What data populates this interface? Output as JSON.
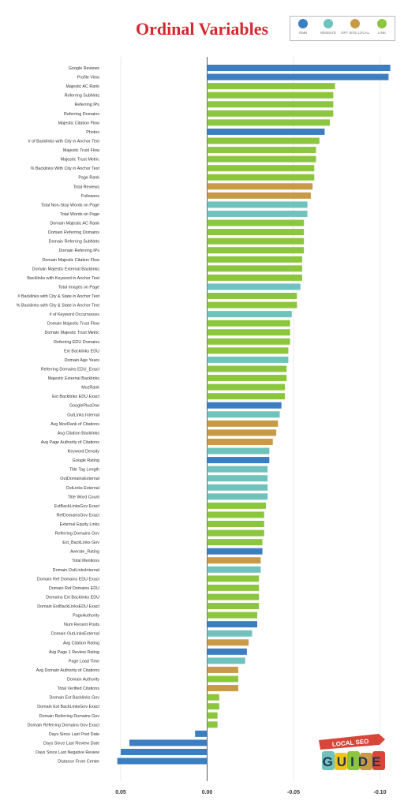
{
  "colors": {
    "title": "#d8282f",
    "gmb": "#3b7ec2",
    "website": "#6fc3bc",
    "offsite": "#c99a45",
    "link": "#8cc63e",
    "axis": "#333333",
    "grid": "#e6e6e6"
  },
  "logo": {
    "top": "LOCAL SEO",
    "bottom": "GUIDE"
  },
  "chart_data": {
    "type": "bar",
    "orientation": "horizontal",
    "title": "Ordinal Variables",
    "xlabel": "",
    "ylabel": "",
    "x_reversed": true,
    "xlim": [
      0.052,
      -0.108
    ],
    "x_ticks": [
      0.05,
      0.0,
      -0.05,
      -0.1
    ],
    "x_tick_labels": [
      "0.05",
      "0.00",
      "-0.05",
      "-0.10"
    ],
    "grid": "vertical",
    "legend_position": "top-right",
    "legend": [
      {
        "name": "GMB",
        "color": "#3b7ec2"
      },
      {
        "name": "WEBSITE",
        "color": "#6fc3bc"
      },
      {
        "name": "OFF SITE LOCAL",
        "color": "#c99a45"
      },
      {
        "name": "LINK",
        "color": "#8cc63e"
      }
    ],
    "bars": [
      {
        "label": "Google Reviews",
        "value": -0.106,
        "group": "GMB"
      },
      {
        "label": "Profile View",
        "value": -0.105,
        "group": "GMB"
      },
      {
        "label": "Majestic AC Rank",
        "value": -0.074,
        "group": "LINK"
      },
      {
        "label": "Referring SubNets",
        "value": -0.073,
        "group": "LINK"
      },
      {
        "label": "Referring IPs",
        "value": -0.073,
        "group": "LINK"
      },
      {
        "label": "Referring Domains",
        "value": -0.073,
        "group": "LINK"
      },
      {
        "label": "Majestic Citation Flow",
        "value": -0.071,
        "group": "LINK"
      },
      {
        "label": "Photos",
        "value": -0.068,
        "group": "GMB"
      },
      {
        "label": "# of Backlinks with City in Anchor Text",
        "value": -0.065,
        "group": "LINK"
      },
      {
        "label": "Majestic Trust Flow",
        "value": -0.063,
        "group": "LINK"
      },
      {
        "label": "Majestic Trust Metric",
        "value": -0.063,
        "group": "LINK"
      },
      {
        "label": "% Backlinks With City in Anchor Text",
        "value": -0.062,
        "group": "LINK"
      },
      {
        "label": "Page Rank",
        "value": -0.062,
        "group": "LINK"
      },
      {
        "label": "Total Reviews",
        "value": -0.061,
        "group": "OFF SITE LOCAL"
      },
      {
        "label": "Followers",
        "value": -0.06,
        "group": "OFF SITE LOCAL"
      },
      {
        "label": "Total Non-Stop Words on Page",
        "value": -0.058,
        "group": "WEBSITE"
      },
      {
        "label": "Total Words on Page",
        "value": -0.058,
        "group": "WEBSITE"
      },
      {
        "label": "Domain Majestic AC Rank",
        "value": -0.056,
        "group": "LINK"
      },
      {
        "label": "Domain Referring Domains",
        "value": -0.056,
        "group": "LINK"
      },
      {
        "label": "Domain Referring SubNets",
        "value": -0.056,
        "group": "LINK"
      },
      {
        "label": "Domain Referring IPs",
        "value": -0.056,
        "group": "LINK"
      },
      {
        "label": "Domain Majestic Citation Flow",
        "value": -0.055,
        "group": "LINK"
      },
      {
        "label": "Domain Majestic External Backlinks",
        "value": -0.055,
        "group": "LINK"
      },
      {
        "label": "Backlinks with Keyword in Anchor Text",
        "value": -0.055,
        "group": "LINK"
      },
      {
        "label": "Total Images on Page",
        "value": -0.054,
        "group": "WEBSITE"
      },
      {
        "label": "# Backlinks with City & State in Anchor Text",
        "value": -0.052,
        "group": "LINK"
      },
      {
        "label": "% Backlinks with City & State in Anchor Text",
        "value": -0.052,
        "group": "LINK"
      },
      {
        "label": "# of Keyword Occurrances",
        "value": -0.049,
        "group": "WEBSITE"
      },
      {
        "label": "Domain Majestic Trust Flow",
        "value": -0.048,
        "group": "LINK"
      },
      {
        "label": "Domain Majestic Trust Metric",
        "value": -0.048,
        "group": "LINK"
      },
      {
        "label": "Referring EDU Domains",
        "value": -0.048,
        "group": "LINK"
      },
      {
        "label": "Ext Backlinks EDU",
        "value": -0.047,
        "group": "LINK"
      },
      {
        "label": "Domain Age Years",
        "value": -0.047,
        "group": "WEBSITE"
      },
      {
        "label": "Referring Domains EDU_Exact",
        "value": -0.046,
        "group": "LINK"
      },
      {
        "label": "Majestic External Backlinks",
        "value": -0.046,
        "group": "LINK"
      },
      {
        "label": "MozRank",
        "value": -0.045,
        "group": "LINK"
      },
      {
        "label": "Ext Backlinks EDU Exact",
        "value": -0.045,
        "group": "LINK"
      },
      {
        "label": "GooglePlusOne",
        "value": -0.043,
        "group": "GMB"
      },
      {
        "label": "OutLinks Internal",
        "value": -0.042,
        "group": "WEBSITE"
      },
      {
        "label": "Avg MozRank of Citations",
        "value": -0.041,
        "group": "OFF SITE LOCAL"
      },
      {
        "label": "Avg Citation Backlinks",
        "value": -0.04,
        "group": "OFF SITE LOCAL"
      },
      {
        "label": "Avg Page Authority of Citations",
        "value": -0.038,
        "group": "OFF SITE LOCAL"
      },
      {
        "label": "Keyword Density",
        "value": -0.036,
        "group": "WEBSITE"
      },
      {
        "label": "Google Rating",
        "value": -0.036,
        "group": "GMB"
      },
      {
        "label": "Title Tag Length",
        "value": -0.035,
        "group": "WEBSITE"
      },
      {
        "label": "OutDomainsExternal",
        "value": -0.035,
        "group": "WEBSITE"
      },
      {
        "label": "OutLinks External",
        "value": -0.035,
        "group": "WEBSITE"
      },
      {
        "label": "Title Word Count",
        "value": -0.035,
        "group": "WEBSITE"
      },
      {
        "label": "ExtBackLinksGov Exact",
        "value": -0.034,
        "group": "LINK"
      },
      {
        "label": "RefDomainsGov Exact",
        "value": -0.033,
        "group": "LINK"
      },
      {
        "label": "External Equity Links",
        "value": -0.033,
        "group": "LINK"
      },
      {
        "label": "Referring Domains Gov",
        "value": -0.033,
        "group": "LINK"
      },
      {
        "label": "Ext_BackLinks Gov",
        "value": -0.032,
        "group": "LINK"
      },
      {
        "label": "Averate_Rating",
        "value": -0.032,
        "group": "GMB"
      },
      {
        "label": "Total Mentions",
        "value": -0.031,
        "group": "OFF SITE LOCAL"
      },
      {
        "label": "Domain.OutLinksInternal",
        "value": -0.031,
        "group": "WEBSITE"
      },
      {
        "label": "Domain Ref Domains EDU Exact",
        "value": -0.03,
        "group": "LINK"
      },
      {
        "label": "Domain Ref Domains EDU",
        "value": -0.03,
        "group": "LINK"
      },
      {
        "label": "Domains Ext Backlinks EDU",
        "value": -0.03,
        "group": "LINK"
      },
      {
        "label": "Domain ExtBackLinksEDU Exact",
        "value": -0.03,
        "group": "LINK"
      },
      {
        "label": "PageAuthority",
        "value": -0.029,
        "group": "LINK"
      },
      {
        "label": "Num Recent Posts",
        "value": -0.029,
        "group": "GMB"
      },
      {
        "label": "Domain OutLinksExternal",
        "value": -0.026,
        "group": "WEBSITE"
      },
      {
        "label": "Avg Citation Rating",
        "value": -0.024,
        "group": "OFF SITE LOCAL"
      },
      {
        "label": "Avg Page 1 Review Rating",
        "value": -0.023,
        "group": "GMB"
      },
      {
        "label": "Page Load Time",
        "value": -0.022,
        "group": "WEBSITE"
      },
      {
        "label": "Avg Domain Authority of Citations",
        "value": -0.018,
        "group": "OFF SITE LOCAL"
      },
      {
        "label": "Domain Authority",
        "value": -0.018,
        "group": "LINK"
      },
      {
        "label": "Total Verified Citations",
        "value": -0.018,
        "group": "OFF SITE LOCAL"
      },
      {
        "label": "Domain Ext Backlinks Gov",
        "value": -0.007,
        "group": "LINK"
      },
      {
        "label": "Domain Ext BackLinksGov Exact",
        "value": -0.007,
        "group": "LINK"
      },
      {
        "label": "Domain Referring Domains Gov",
        "value": -0.006,
        "group": "LINK"
      },
      {
        "label": "Domain Referring Domains Gov Exact",
        "value": -0.006,
        "group": "LINK"
      },
      {
        "label": "Days Since Last Post Date",
        "value": 0.007,
        "group": "GMB"
      },
      {
        "label": "Days Since Last Review Date",
        "value": 0.045,
        "group": "GMB"
      },
      {
        "label": "Days Since Last Negative Review",
        "value": 0.05,
        "group": "GMB"
      },
      {
        "label": "Distance From Center",
        "value": 0.052,
        "group": "GMB"
      }
    ]
  }
}
